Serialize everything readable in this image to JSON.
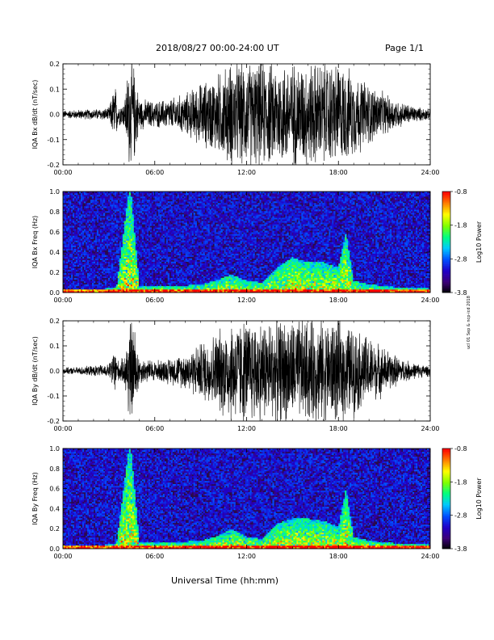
{
  "header": {
    "title": "2018/08/27  00:00-24:00 UT",
    "page": "Page 1/1"
  },
  "footer": {
    "x_axis_title": "Universal Time (hh:mm)",
    "credit": "ucl 01 Sep & ncp-icd 2018"
  },
  "colors": {
    "waveform": "#000000",
    "spectrogram_background": "#2a0a4a",
    "colormap": [
      "#000000",
      "#3c0078",
      "#2000c8",
      "#0050ff",
      "#00c8ff",
      "#00ff80",
      "#80ff00",
      "#ffff00",
      "#ff8000",
      "#ff0000"
    ]
  },
  "chart_data": [
    {
      "type": "line",
      "ylabel": "IQA Bx dB/dt (nT/sec)",
      "x_ticks": [
        "00:00",
        "06:00",
        "12:00",
        "18:00",
        "24:00"
      ],
      "y_ticks": [
        "-0.2",
        "-0.1",
        "0.0",
        "0.1",
        "0.2"
      ],
      "xlim": [
        0,
        24
      ],
      "ylim": [
        -0.2,
        0.2
      ],
      "x_unit": "hours UT",
      "envelope": {
        "x": [
          0,
          1,
          2,
          3,
          3.4,
          3.6,
          4.0,
          4.3,
          4.45,
          4.6,
          5,
          6,
          7,
          8,
          9,
          10,
          11,
          12,
          13,
          14,
          15,
          16,
          17,
          18,
          19,
          20,
          21,
          22,
          23,
          24
        ],
        "y": [
          0.015,
          0.018,
          0.02,
          0.025,
          0.12,
          0.04,
          0.05,
          0.2,
          0.2,
          0.2,
          0.06,
          0.05,
          0.06,
          0.08,
          0.12,
          0.15,
          0.2,
          0.2,
          0.2,
          0.2,
          0.2,
          0.2,
          0.2,
          0.2,
          0.16,
          0.12,
          0.08,
          0.05,
          0.03,
          0.02
        ]
      }
    },
    {
      "type": "heatmap",
      "ylabel": "IQA Bx Freq (Hz)",
      "colorbar_label": "Log10 Power",
      "colorbar_ticks": [
        "-0.8",
        "-1.8",
        "-2.8",
        "-3.8"
      ],
      "colorbar_range": [
        -3.8,
        -0.8
      ],
      "x_ticks": [
        "00:00",
        "06:00",
        "12:00",
        "18:00",
        "24:00"
      ],
      "y_ticks": [
        "0.0",
        "0.2",
        "0.4",
        "0.6",
        "0.8",
        "1.0"
      ],
      "xlim": [
        0,
        24
      ],
      "ylim": [
        0,
        1
      ],
      "activity_height_hz": {
        "x": [
          0,
          2,
          3.5,
          4.3,
          4.45,
          5,
          7,
          9,
          10,
          11,
          12,
          13,
          14,
          15,
          16,
          17,
          18,
          18.5,
          19,
          20,
          22,
          24
        ],
        "y": [
          0.03,
          0.03,
          0.05,
          1.0,
          1.0,
          0.06,
          0.06,
          0.08,
          0.12,
          0.18,
          0.12,
          0.1,
          0.25,
          0.35,
          0.3,
          0.3,
          0.25,
          0.6,
          0.12,
          0.08,
          0.05,
          0.04
        ]
      }
    },
    {
      "type": "line",
      "ylabel": "IQA By dB/dt (nT/sec)",
      "x_ticks": [
        "00:00",
        "06:00",
        "12:00",
        "18:00",
        "24:00"
      ],
      "y_ticks": [
        "-0.2",
        "-0.1",
        "0.0",
        "0.1",
        "0.2"
      ],
      "xlim": [
        0,
        24
      ],
      "ylim": [
        -0.2,
        0.2
      ],
      "x_unit": "hours UT",
      "envelope": {
        "x": [
          0,
          1,
          2,
          3,
          3.4,
          3.6,
          4.0,
          4.3,
          4.45,
          4.6,
          5,
          6,
          7,
          8,
          9,
          10,
          11,
          12,
          13,
          14,
          15,
          16,
          17,
          18,
          19,
          20,
          21,
          22,
          23,
          24
        ],
        "y": [
          0.012,
          0.015,
          0.02,
          0.025,
          0.1,
          0.04,
          0.05,
          0.2,
          0.2,
          0.2,
          0.05,
          0.04,
          0.05,
          0.07,
          0.11,
          0.15,
          0.2,
          0.2,
          0.2,
          0.2,
          0.2,
          0.2,
          0.2,
          0.2,
          0.17,
          0.13,
          0.09,
          0.05,
          0.03,
          0.02
        ]
      }
    },
    {
      "type": "heatmap",
      "ylabel": "IQA By Freq (Hz)",
      "colorbar_label": "Log10 Power",
      "colorbar_ticks": [
        "-0.8",
        "-1.8",
        "-2.8",
        "-3.8"
      ],
      "colorbar_range": [
        -3.8,
        -0.8
      ],
      "x_ticks": [
        "00:00",
        "06:00",
        "12:00",
        "18:00",
        "24:00"
      ],
      "y_ticks": [
        "0.0",
        "0.2",
        "0.4",
        "0.6",
        "0.8",
        "1.0"
      ],
      "xlim": [
        0,
        24
      ],
      "ylim": [
        0,
        1
      ],
      "activity_height_hz": {
        "x": [
          0,
          2,
          3.5,
          4.3,
          4.45,
          5,
          7,
          9,
          10,
          11,
          12,
          13,
          14,
          15,
          16,
          17,
          18,
          18.5,
          19,
          20,
          22,
          24
        ],
        "y": [
          0.03,
          0.03,
          0.05,
          1.0,
          1.0,
          0.06,
          0.06,
          0.08,
          0.12,
          0.2,
          0.12,
          0.1,
          0.25,
          0.3,
          0.3,
          0.28,
          0.22,
          0.6,
          0.12,
          0.08,
          0.05,
          0.04
        ]
      }
    }
  ]
}
